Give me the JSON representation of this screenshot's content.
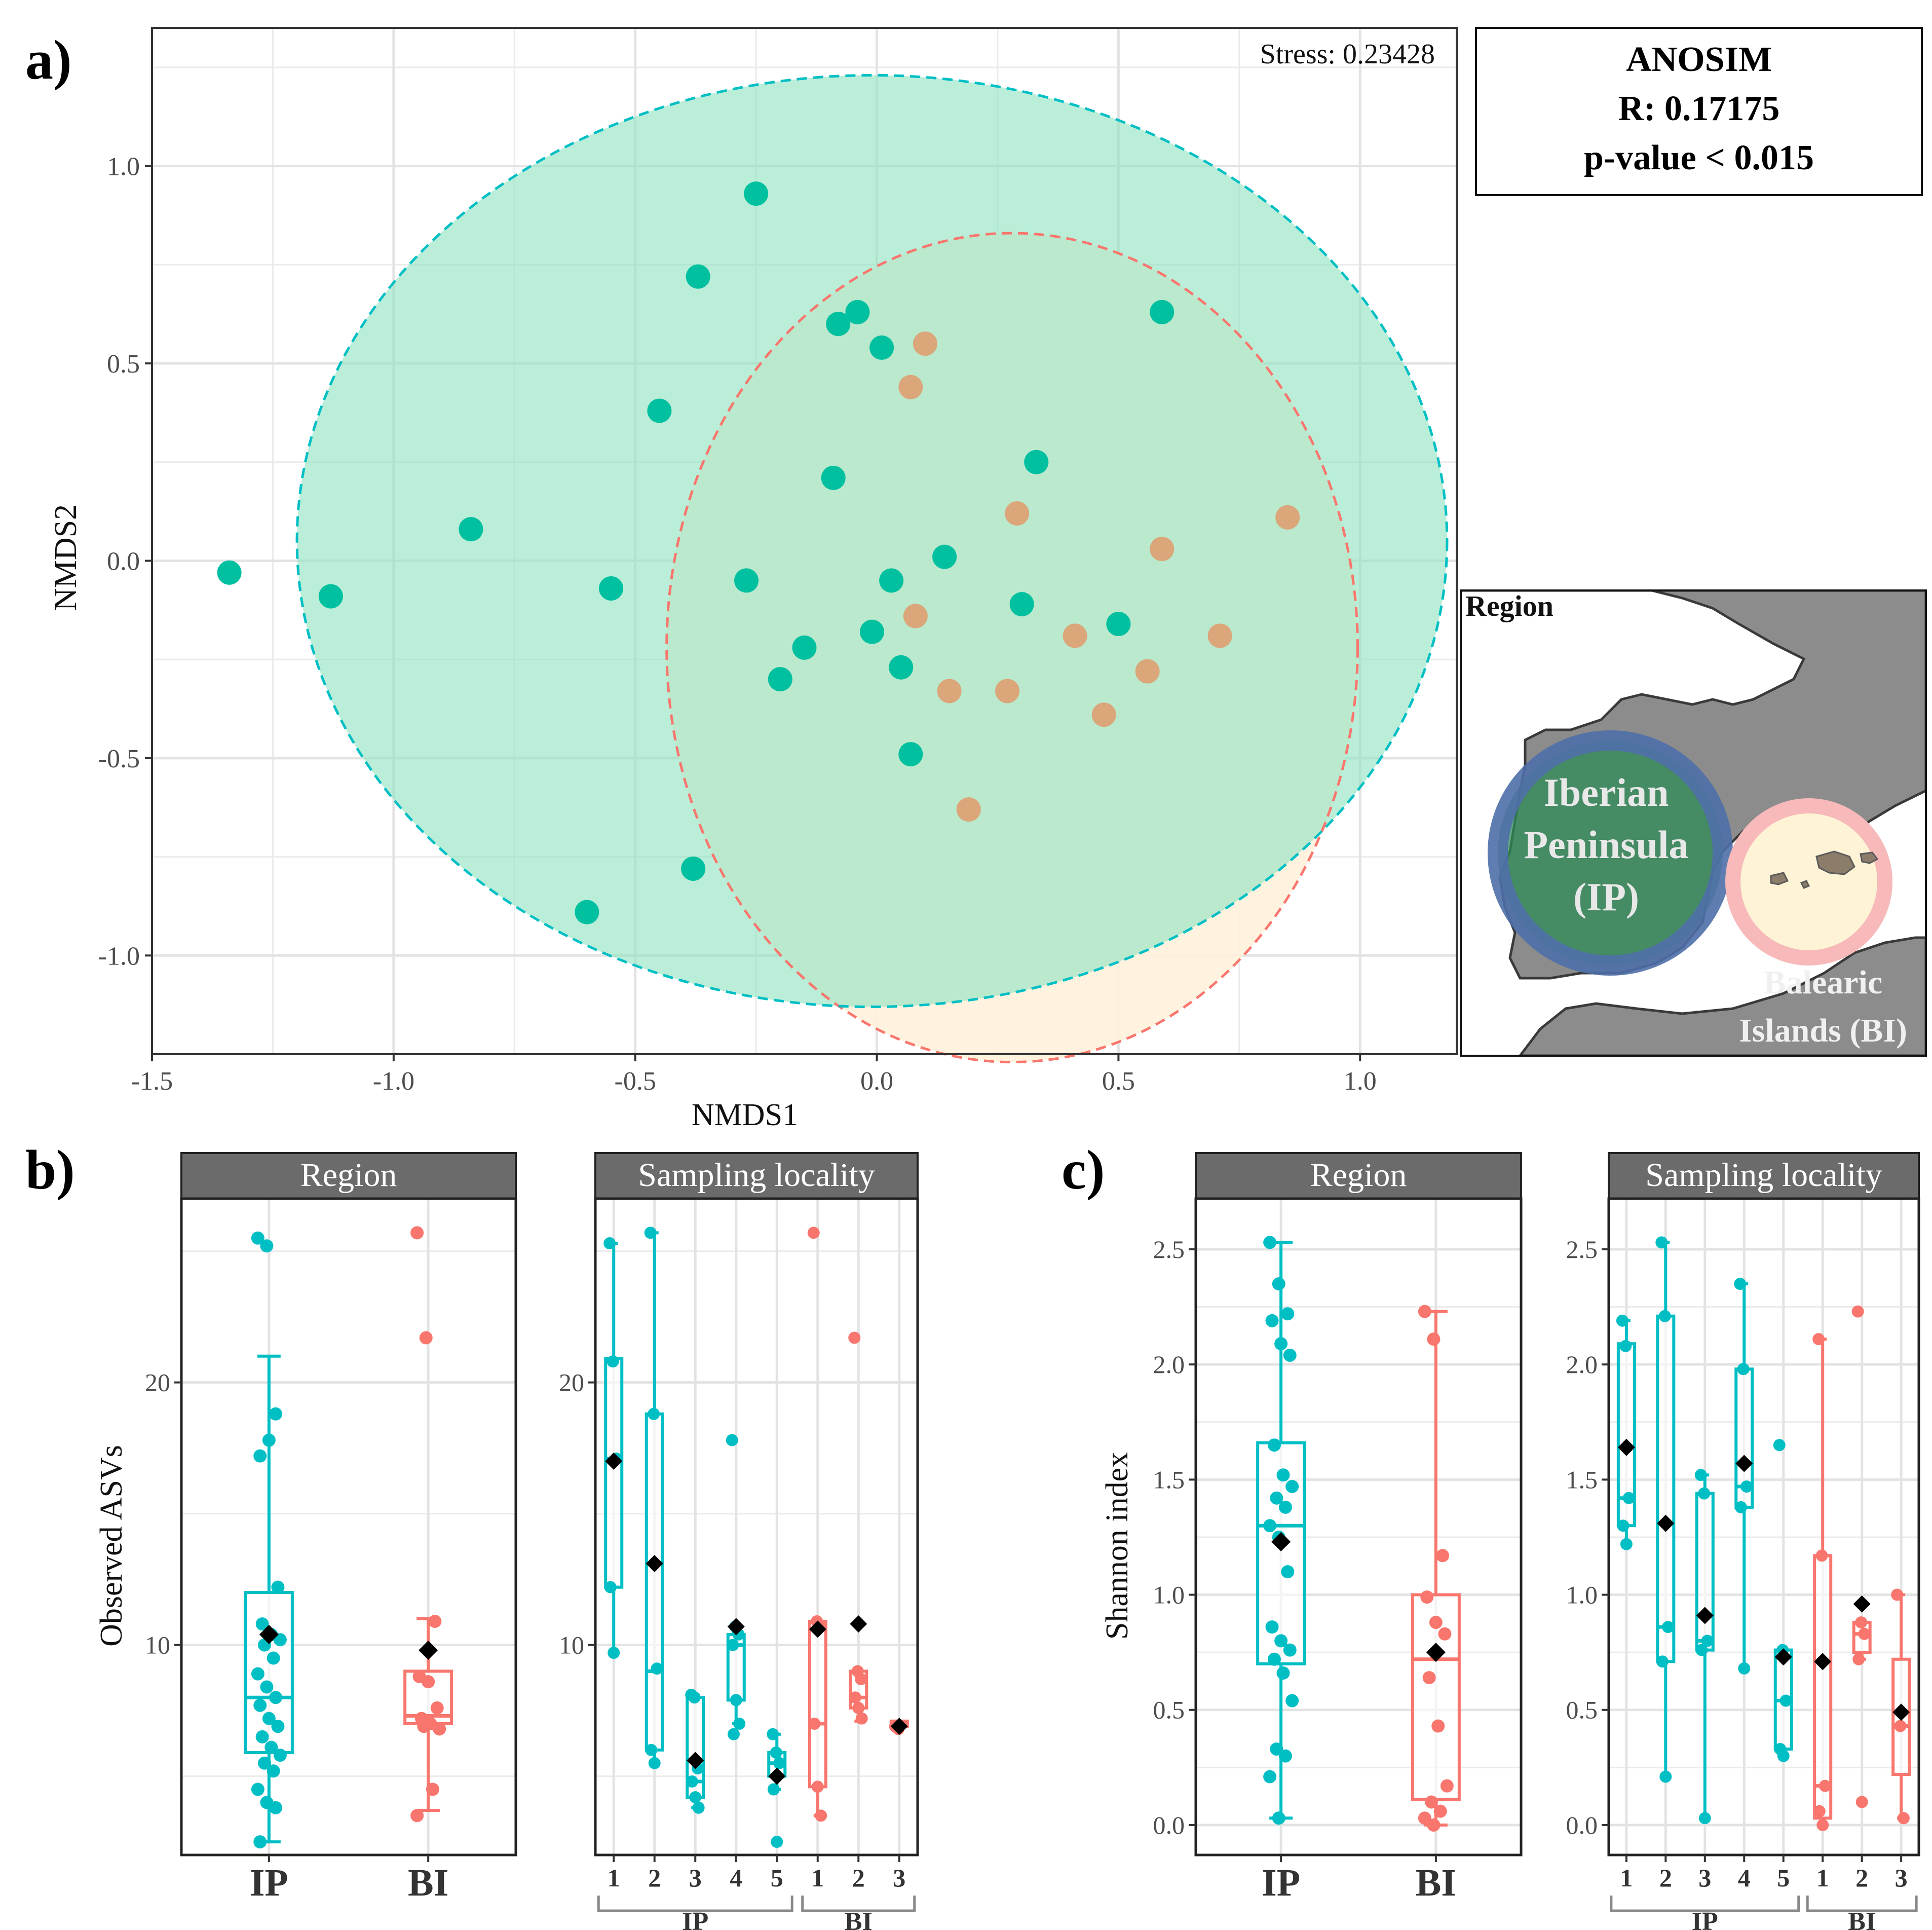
{
  "colors": {
    "ip": "#00BFC4",
    "ip_dot": "#00C0A0",
    "bi": "#F8766D",
    "bi_dot": "#E09A6A",
    "ip_fill": "#8FE3C2",
    "bi_fill": "#FFF1DC",
    "strip": "#6B6B6B",
    "grid": "#EBEBEB",
    "land": "#8C8C8C",
    "ip_region_fill": "#2E8B57",
    "ip_region_ring": "#4F6FA8",
    "bi_region_fill": "#FFF3D6",
    "bi_region_ring": "#F7B9B9",
    "mean_marker": "#000000"
  },
  "panels": {
    "a_label": "a)",
    "b_label": "b)",
    "c_label": "c)"
  },
  "anosim": {
    "title": "ANOSIM",
    "r": "R: 0.17175",
    "p": "p-value < 0.015"
  },
  "stress": "Stress: 0.23428",
  "map": {
    "legend_title": "Region",
    "ip_line1": "Iberian",
    "ip_line2": "Peninsula",
    "ip_line3": "(IP)",
    "bi_line1": "Balearic",
    "bi_line2": "Islands (BI)",
    "icon": "map-of-spain-icon"
  },
  "strips": {
    "region": "Region",
    "locality": "Sampling locality"
  },
  "brackets": {
    "ip": "IP",
    "bi": "BI"
  },
  "chart_data": [
    {
      "id": "nmds",
      "type": "scatter",
      "title": "",
      "xlabel": "NMDS1",
      "ylabel": "NMDS2",
      "xlim": [
        -1.5,
        1.2
      ],
      "ylim": [
        -1.25,
        1.35
      ],
      "xticks": [
        -1.5,
        -1.0,
        -0.5,
        0.0,
        0.5,
        1.0
      ],
      "xtick_labels": [
        "-1.5",
        "-1.0",
        "-0.5",
        "0.0",
        "0.5",
        "1.0"
      ],
      "yticks": [
        -1.0,
        -0.5,
        0.0,
        0.5,
        1.0
      ],
      "ytick_labels": [
        "-1.0",
        "-0.5",
        "0.0",
        "0.5",
        "1.0"
      ],
      "ellipses": [
        {
          "group": "IP",
          "cx": -0.01,
          "cy": 0.05,
          "rx": 1.19,
          "ry": 1.18
        },
        {
          "group": "BI",
          "cx": 0.28,
          "cy": -0.22,
          "rx": 0.715,
          "ry": 1.05
        }
      ],
      "series": [
        {
          "name": "IP",
          "points": [
            [
              -1.34,
              -0.03
            ],
            [
              -1.13,
              -0.09
            ],
            [
              -0.84,
              0.08
            ],
            [
              -0.55,
              -0.07
            ],
            [
              -0.45,
              0.38
            ],
            [
              -0.37,
              0.72
            ],
            [
              -0.38,
              -0.78
            ],
            [
              -0.6,
              -0.89
            ],
            [
              -0.25,
              0.93
            ],
            [
              -0.27,
              -0.05
            ],
            [
              -0.2,
              -0.3
            ],
            [
              -0.15,
              -0.22
            ],
            [
              -0.08,
              0.6
            ],
            [
              -0.04,
              0.63
            ],
            [
              0.01,
              0.54
            ],
            [
              -0.09,
              0.21
            ],
            [
              -0.01,
              -0.18
            ],
            [
              0.03,
              -0.05
            ],
            [
              0.05,
              -0.27
            ],
            [
              0.07,
              -0.49
            ],
            [
              0.14,
              0.01
            ],
            [
              0.3,
              -0.11
            ],
            [
              0.33,
              0.25
            ],
            [
              0.5,
              -0.16
            ],
            [
              0.59,
              0.63
            ]
          ]
        },
        {
          "name": "BI",
          "points": [
            [
              0.1,
              0.55
            ],
            [
              0.07,
              0.44
            ],
            [
              0.29,
              0.12
            ],
            [
              0.59,
              0.03
            ],
            [
              0.85,
              0.11
            ],
            [
              0.08,
              -0.14
            ],
            [
              0.41,
              -0.19
            ],
            [
              0.71,
              -0.19
            ],
            [
              0.56,
              -0.28
            ],
            [
              0.15,
              -0.33
            ],
            [
              0.27,
              -0.33
            ],
            [
              0.47,
              -0.39
            ],
            [
              0.19,
              -0.63
            ]
          ]
        }
      ]
    },
    {
      "id": "b_region",
      "type": "boxplot",
      "ylabel": "Observed ASVs",
      "ylim": [
        2,
        27
      ],
      "yticks": [
        10,
        20
      ],
      "ytick_labels": [
        "10",
        "20"
      ],
      "categories": [
        "IP",
        "BI"
      ],
      "boxes": [
        {
          "name": "IP",
          "group": "IP",
          "min": 2.5,
          "q1": 5.9,
          "median": 8.0,
          "q3": 12.0,
          "max": 21.0,
          "mean": 10.4,
          "points": [
            25.5,
            25.2,
            18.8,
            17.2,
            17.8,
            12.2,
            10.8,
            10.4,
            10.2,
            10.0,
            9.5,
            8.9,
            8.4,
            8.0,
            7.7,
            7.2,
            6.9,
            6.5,
            6.1,
            5.8,
            5.5,
            5.2,
            4.5,
            4.0,
            3.8,
            2.5
          ]
        },
        {
          "name": "BI",
          "group": "BI",
          "min": 3.7,
          "q1": 7.0,
          "median": 7.3,
          "q3": 9.0,
          "max": 11.0,
          "mean": 9.8,
          "points": [
            25.7,
            21.7,
            10.9,
            8.8,
            8.6,
            7.6,
            7.2,
            7.0,
            6.8,
            6.9,
            4.5,
            3.5
          ]
        }
      ]
    },
    {
      "id": "b_locality",
      "type": "boxplot",
      "ylim": [
        2,
        27
      ],
      "yticks": [
        10,
        20
      ],
      "ytick_labels": [
        "10",
        "20"
      ],
      "categories": [
        "1",
        "2",
        "3",
        "4",
        "5",
        "1",
        "2",
        "3"
      ],
      "groups": [
        {
          "name": "IP",
          "from": 0,
          "to": 4
        },
        {
          "name": "BI",
          "from": 5,
          "to": 7
        }
      ],
      "boxes": [
        {
          "name": "1",
          "group": "IP",
          "min": 9.7,
          "q1": 12.2,
          "median": 17.1,
          "q3": 20.9,
          "max": 25.3,
          "mean": 17.0,
          "points": [
            25.3,
            20.8,
            17.1,
            12.2,
            9.7
          ]
        },
        {
          "name": "2",
          "group": "IP",
          "min": 5.5,
          "q1": 6.0,
          "median": 9.0,
          "q3": 18.8,
          "max": 25.7,
          "mean": 13.1,
          "points": [
            25.7,
            18.8,
            9.1,
            6.0,
            5.5
          ]
        },
        {
          "name": "3",
          "group": "IP",
          "min": 3.8,
          "q1": 4.2,
          "median": 4.8,
          "q3": 8.0,
          "max": 8.1,
          "mean": 5.6,
          "points": [
            8.1,
            8.0,
            5.3,
            4.8,
            4.2,
            3.8
          ]
        },
        {
          "name": "4",
          "group": "IP",
          "min": 7.0,
          "q1": 7.9,
          "median": 10.0,
          "q3": 10.4,
          "max": 10.5,
          "mean": 10.7,
          "points": [
            17.8,
            10.7,
            10.4,
            10.0,
            7.9,
            7.0,
            6.6
          ]
        },
        {
          "name": "5",
          "group": "IP",
          "min": 4.5,
          "q1": 5.0,
          "median": 5.5,
          "q3": 5.9,
          "max": 6.6,
          "mean": 5.0,
          "points": [
            6.6,
            5.9,
            5.5,
            4.5,
            2.5
          ]
        },
        {
          "name": "1",
          "group": "BI",
          "min": 3.5,
          "q1": 4.6,
          "median": 7.0,
          "q3": 10.9,
          "max": 10.9,
          "mean": 10.6,
          "points": [
            25.7,
            10.9,
            10.7,
            7.0,
            4.6,
            3.5
          ]
        },
        {
          "name": "2",
          "group": "BI",
          "min": 7.1,
          "q1": 7.6,
          "median": 8.0,
          "q3": 9.0,
          "max": 9.0,
          "mean": 10.8,
          "points": [
            21.7,
            9.0,
            8.7,
            8.0,
            7.6,
            7.2
          ]
        },
        {
          "name": "3",
          "group": "BI",
          "min": 6.9,
          "q1": 6.9,
          "median": 7.0,
          "q3": 7.1,
          "max": 7.1,
          "mean": 6.9,
          "points": [
            6.9,
            6.8
          ]
        }
      ]
    },
    {
      "id": "c_region",
      "type": "boxplot",
      "ylabel": "Shannon index",
      "ylim": [
        -0.13,
        2.72
      ],
      "yticks": [
        0.0,
        0.5,
        1.0,
        1.5,
        2.0,
        2.5
      ],
      "ytick_labels": [
        "0.0",
        "0.5",
        "1.0",
        "1.5",
        "2.0",
        "2.5"
      ],
      "categories": [
        "IP",
        "BI"
      ],
      "boxes": [
        {
          "name": "IP",
          "group": "IP",
          "min": 0.03,
          "q1": 0.7,
          "median": 1.3,
          "q3": 1.66,
          "max": 2.53,
          "mean": 1.23,
          "points": [
            2.53,
            2.35,
            2.22,
            2.19,
            2.09,
            2.04,
            1.65,
            1.52,
            1.47,
            1.42,
            1.38,
            1.3,
            1.25,
            1.1,
            0.86,
            0.8,
            0.76,
            0.72,
            0.66,
            0.54,
            0.33,
            0.3,
            0.21,
            0.03
          ]
        },
        {
          "name": "BI",
          "group": "BI",
          "min": 0.0,
          "q1": 0.11,
          "median": 0.72,
          "q3": 1.0,
          "max": 2.23,
          "mean": 0.75,
          "points": [
            2.23,
            2.11,
            1.17,
            0.99,
            0.88,
            0.83,
            0.64,
            0.43,
            0.17,
            0.1,
            0.06,
            0.03,
            0.0
          ]
        }
      ]
    },
    {
      "id": "c_locality",
      "type": "boxplot",
      "ylim": [
        -0.13,
        2.72
      ],
      "yticks": [
        0.0,
        0.5,
        1.0,
        1.5,
        2.0,
        2.5
      ],
      "ytick_labels": [
        "0.0",
        "0.5",
        "1.0",
        "1.5",
        "2.0",
        "2.5"
      ],
      "categories": [
        "1",
        "2",
        "3",
        "4",
        "5",
        "1",
        "2",
        "3"
      ],
      "groups": [
        {
          "name": "IP",
          "from": 0,
          "to": 4
        },
        {
          "name": "BI",
          "from": 5,
          "to": 7
        }
      ],
      "boxes": [
        {
          "name": "1",
          "group": "IP",
          "min": 1.22,
          "q1": 1.3,
          "median": 1.42,
          "q3": 2.09,
          "max": 2.19,
          "mean": 1.64,
          "points": [
            2.19,
            2.08,
            1.42,
            1.3,
            1.22
          ]
        },
        {
          "name": "2",
          "group": "IP",
          "min": 0.21,
          "q1": 0.71,
          "median": 0.86,
          "q3": 2.21,
          "max": 2.53,
          "mean": 1.31,
          "points": [
            2.53,
            2.21,
            0.86,
            0.71,
            0.21
          ]
        },
        {
          "name": "3",
          "group": "IP",
          "min": 0.03,
          "q1": 0.76,
          "median": 0.8,
          "q3": 1.44,
          "max": 1.52,
          "mean": 0.91,
          "points": [
            1.52,
            1.44,
            0.8,
            0.76,
            0.03
          ]
        },
        {
          "name": "4",
          "group": "IP",
          "min": 0.68,
          "q1": 1.38,
          "median": 1.47,
          "q3": 1.98,
          "max": 2.35,
          "mean": 1.57,
          "points": [
            2.35,
            1.98,
            1.47,
            1.38,
            0.68
          ]
        },
        {
          "name": "5",
          "group": "IP",
          "min": 0.3,
          "q1": 0.33,
          "median": 0.54,
          "q3": 0.76,
          "max": 0.76,
          "mean": 0.73,
          "points": [
            1.65,
            0.76,
            0.54,
            0.33,
            0.3
          ]
        },
        {
          "name": "1",
          "group": "BI",
          "min": 0.0,
          "q1": 0.03,
          "median": 0.17,
          "q3": 1.17,
          "max": 2.11,
          "mean": 0.71,
          "points": [
            2.11,
            1.17,
            0.17,
            0.06,
            0.0
          ]
        },
        {
          "name": "2",
          "group": "BI",
          "min": 0.72,
          "q1": 0.75,
          "median": 0.83,
          "q3": 0.88,
          "max": 0.88,
          "mean": 0.96,
          "points": [
            2.23,
            0.88,
            0.83,
            0.72,
            0.1
          ]
        },
        {
          "name": "3",
          "group": "BI",
          "min": 0.03,
          "q1": 0.22,
          "median": 0.43,
          "q3": 0.72,
          "max": 1.0,
          "mean": 0.49,
          "points": [
            1.0,
            0.43,
            0.03
          ]
        }
      ]
    }
  ]
}
